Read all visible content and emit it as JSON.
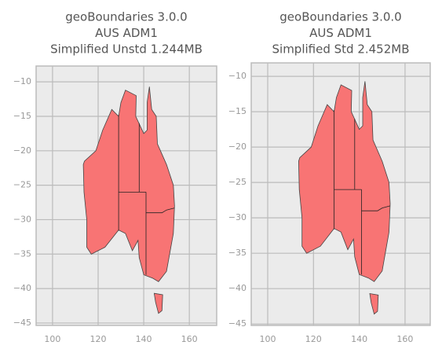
{
  "chart_data": [
    {
      "type": "map",
      "title": [
        "geoBoundaries 3.0.0",
        "AUS ADM1",
        "Simplified Unstd 1.244MB"
      ],
      "xlim": [
        92.8,
        172
      ],
      "ylim": [
        -45.35,
        -7.7
      ],
      "xticks": [
        100,
        120,
        140,
        160
      ],
      "yticks": [
        {
          "value": -10,
          "label": "−10"
        },
        {
          "value": -15,
          "label": "−15"
        },
        {
          "value": -20,
          "label": "−20"
        },
        {
          "value": -25,
          "label": "−25"
        },
        {
          "value": -30,
          "label": "−30"
        },
        {
          "value": -35,
          "label": "−35"
        },
        {
          "value": -40,
          "label": "−40"
        },
        {
          "value": -45,
          "label": "−45"
        }
      ],
      "color": "#f87474",
      "grid": true
    },
    {
      "type": "map",
      "title": [
        "geoBoundaries 3.0.0",
        "AUS ADM1",
        "Simplified Std 2.452MB"
      ],
      "xlim": [
        92.8,
        171
      ],
      "ylim": [
        -45.2,
        -8.1
      ],
      "xticks": [
        100,
        120,
        140,
        160
      ],
      "yticks": [
        {
          "value": -10,
          "label": "−10"
        },
        {
          "value": -15,
          "label": "−15"
        },
        {
          "value": -20,
          "label": "−20"
        },
        {
          "value": -25,
          "label": "−25"
        },
        {
          "value": -30,
          "label": "−30"
        },
        {
          "value": -35,
          "label": "−35"
        },
        {
          "value": -40,
          "label": "−40"
        },
        {
          "value": -45,
          "label": "−45"
        }
      ],
      "color": "#f87474",
      "grid": true
    }
  ]
}
